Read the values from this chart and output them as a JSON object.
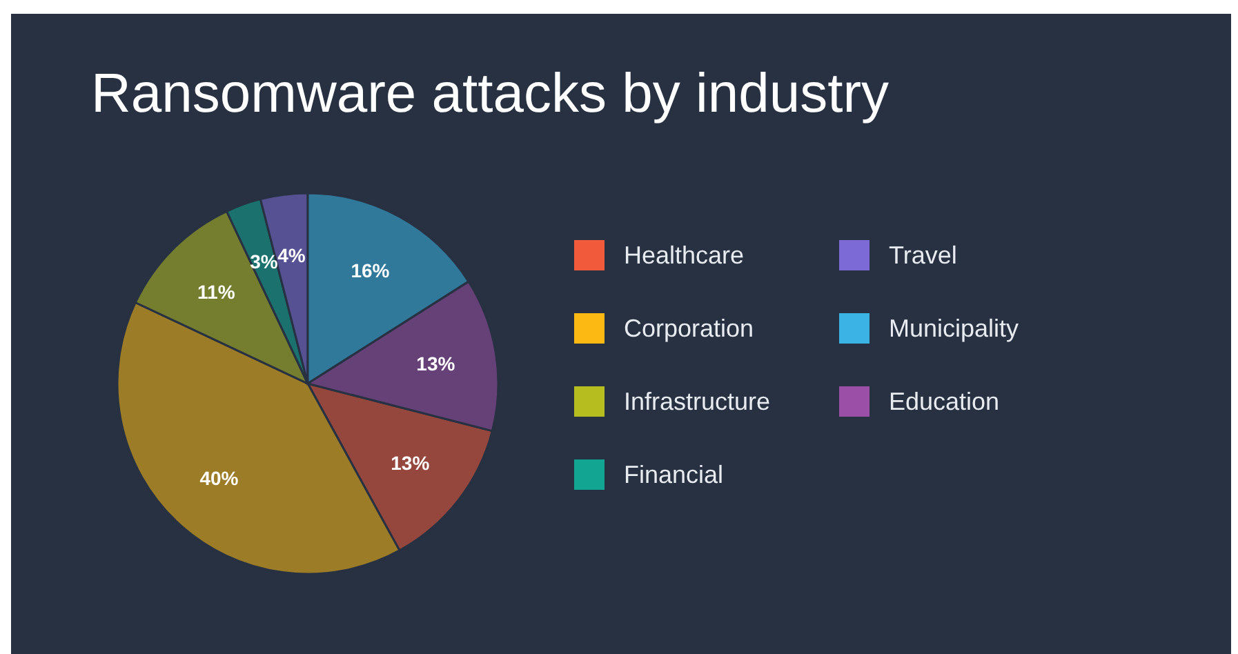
{
  "chart_data": {
    "type": "pie",
    "title": "Ransomware attacks by industry",
    "categories": [
      "Healthcare",
      "Corporation",
      "Infrastructure",
      "Financial",
      "Travel",
      "Municipality",
      "Education"
    ],
    "values": [
      13,
      40,
      11,
      3,
      4,
      16,
      13
    ],
    "value_labels": [
      "13%",
      "40%",
      "11%",
      "3%",
      "4%",
      "16%",
      "13%"
    ],
    "colors": [
      "#f15a3a",
      "#fdb913",
      "#b5bd1f",
      "#12a591",
      "#7c6bd6",
      "#3bb4e5",
      "#9b4fa6"
    ],
    "legend": "right"
  }
}
